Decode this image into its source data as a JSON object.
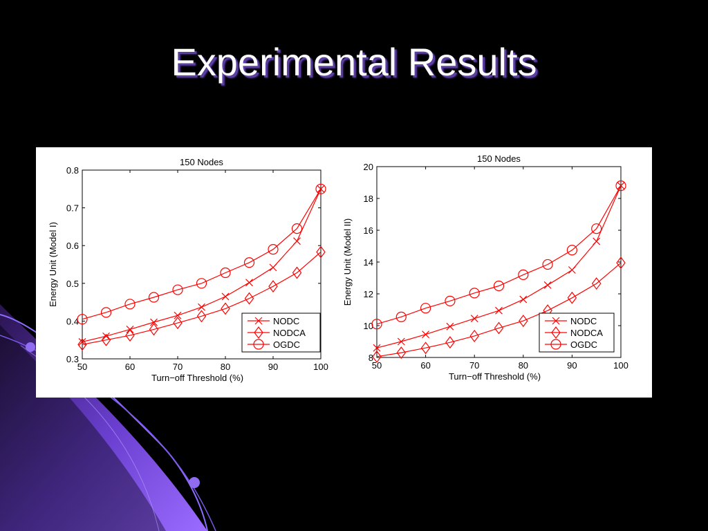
{
  "slide": {
    "title": "Experimental Results",
    "colors": {
      "background": "#000000",
      "title": "#ffffff",
      "title_shadow": "#5a3ea0",
      "accent": "#8b5cf6",
      "series": "#ff0000"
    }
  },
  "chart_data": [
    {
      "type": "line",
      "title": "150 Nodes",
      "xlabel": "Turn−off Threshold (%)",
      "ylabel": "Energy Unit (Model I)",
      "xlim": [
        50,
        100
      ],
      "ylim": [
        0.3,
        0.8
      ],
      "xticks": [
        50,
        60,
        70,
        80,
        90,
        100
      ],
      "yticks": [
        0.3,
        0.4,
        0.5,
        0.6,
        0.7,
        0.8
      ],
      "ytick_labels": [
        "0.3",
        "0.4",
        "0.5",
        "0.6",
        "0.7",
        "0.8"
      ],
      "grid": false,
      "legend_position": "bottom-right",
      "x": [
        50,
        55,
        60,
        65,
        70,
        75,
        80,
        85,
        90,
        95,
        100
      ],
      "series": [
        {
          "name": "NODC",
          "marker": "x",
          "values": [
            0.345,
            0.36,
            0.378,
            0.397,
            0.415,
            0.437,
            0.465,
            0.502,
            0.542,
            0.612,
            0.75
          ]
        },
        {
          "name": "NODCA",
          "marker": "diamond",
          "values": [
            0.338,
            0.35,
            0.362,
            0.378,
            0.395,
            0.413,
            0.433,
            0.46,
            0.492,
            0.528,
            0.583
          ]
        },
        {
          "name": "OGDC",
          "marker": "circle",
          "values": [
            0.405,
            0.423,
            0.445,
            0.463,
            0.483,
            0.5,
            0.528,
            0.555,
            0.59,
            0.645,
            0.75
          ]
        }
      ]
    },
    {
      "type": "line",
      "title": "150 Nodes",
      "xlabel": "Turn−off Threshold (%)",
      "ylabel": "Energy Unit (Model II)",
      "xlim": [
        50,
        100
      ],
      "ylim": [
        8,
        20
      ],
      "xticks": [
        50,
        60,
        70,
        80,
        90,
        100
      ],
      "yticks": [
        8,
        10,
        12,
        14,
        16,
        18,
        20
      ],
      "ytick_labels": [
        "8",
        "10",
        "12",
        "14",
        "16",
        "18",
        "20"
      ],
      "grid": false,
      "legend_position": "bottom-right",
      "x": [
        50,
        55,
        60,
        65,
        70,
        75,
        80,
        85,
        90,
        95,
        100
      ],
      "series": [
        {
          "name": "NODC",
          "marker": "x",
          "values": [
            8.6,
            9.0,
            9.45,
            9.95,
            10.45,
            10.95,
            11.65,
            12.55,
            13.5,
            15.3,
            18.8
          ]
        },
        {
          "name": "NODCA",
          "marker": "diamond",
          "values": [
            8.05,
            8.3,
            8.6,
            8.95,
            9.35,
            9.85,
            10.3,
            10.95,
            11.75,
            12.65,
            13.95
          ]
        },
        {
          "name": "OGDC",
          "marker": "circle",
          "values": [
            10.1,
            10.55,
            11.1,
            11.55,
            12.05,
            12.5,
            13.2,
            13.85,
            14.75,
            16.1,
            18.8
          ]
        }
      ]
    }
  ]
}
